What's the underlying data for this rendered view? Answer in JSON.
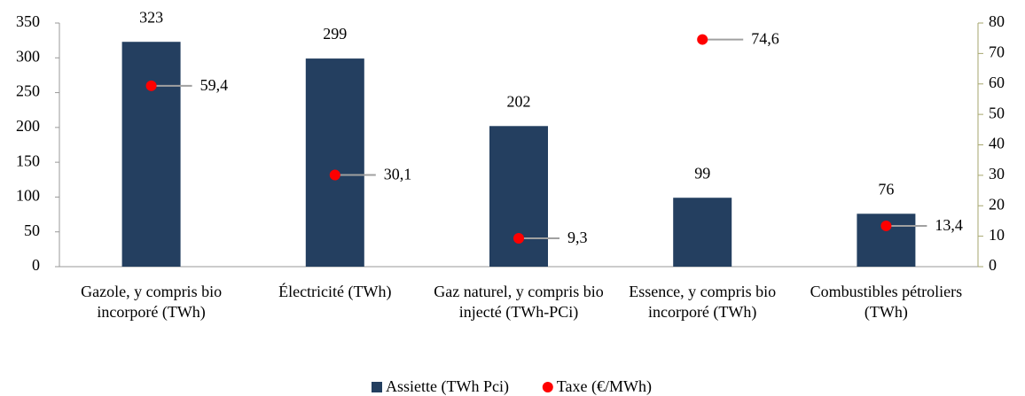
{
  "chart_data": {
    "type": "bar",
    "categories": [
      "Gazole, y compris bio incorporé (TWh)",
      "Électricité (TWh)",
      "Gaz naturel, y compris bio injecté (TWh-PCi)",
      "Essence, y compris bio incorporé (TWh)",
      "Combustibles pétroliers (TWh)"
    ],
    "series": [
      {
        "name": "Assiette (TWh Pci)",
        "type": "bar",
        "color": "#243f60",
        "values": [
          323,
          299,
          202,
          99,
          76
        ]
      },
      {
        "name": "Taxe (€/MWh)",
        "type": "scatter",
        "axis": "y2",
        "color": "#ff0000",
        "values": [
          59.4,
          30.1,
          9.3,
          74.6,
          13.4
        ],
        "value_labels": [
          "59,4",
          "30,1",
          "9,3",
          "74,6",
          "13,4"
        ]
      }
    ],
    "ylim": [
      0,
      350
    ],
    "yticks": [
      0,
      50,
      100,
      150,
      200,
      250,
      300,
      350
    ],
    "y2lim": [
      0,
      80
    ],
    "y2ticks": [
      0,
      10,
      20,
      30,
      40,
      50,
      60,
      70,
      80
    ],
    "legend": "bottom"
  }
}
